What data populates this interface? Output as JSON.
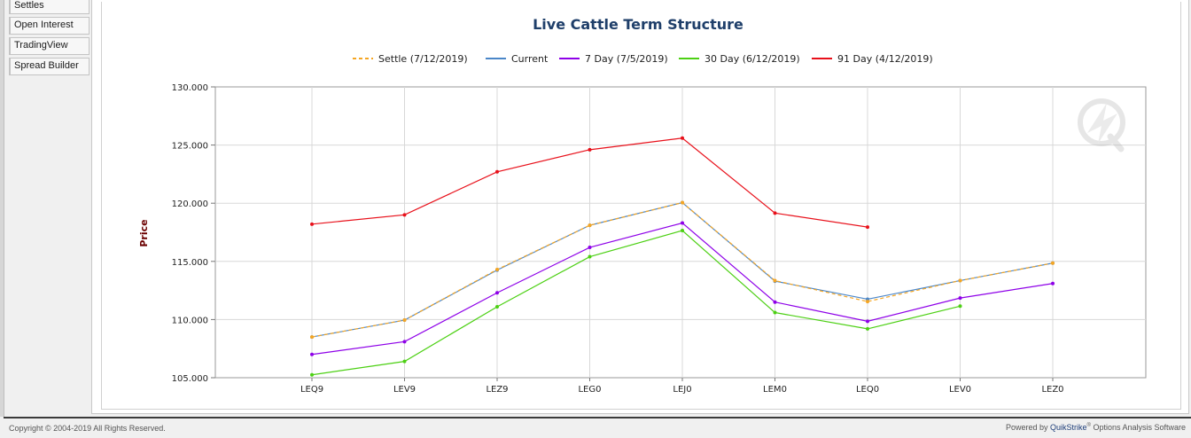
{
  "sidebar": {
    "items": [
      {
        "label": "Settles"
      },
      {
        "label": "Open Interest"
      },
      {
        "label": "TradingView"
      },
      {
        "label": "Spread Builder"
      }
    ]
  },
  "footer": {
    "copyright": "Copyright © 2004-2019 All Rights Reserved.",
    "powered_by": "Powered by",
    "brand": "QuikStrike",
    "brand_mark": "®",
    "product": "Options Analysis Software"
  },
  "colors": {
    "settle": "#f5a623",
    "current": "#4a86c8",
    "day7": "#8e00e8",
    "day30": "#4cd013",
    "day91": "#e8101a",
    "title": "#1f3f6a",
    "ylabel": "#6b0000"
  },
  "chart_data": {
    "type": "line",
    "title": "Live Cattle Term Structure",
    "xlabel": "",
    "ylabel": "Price",
    "categories": [
      "LEQ9",
      "LEV9",
      "LEZ9",
      "LEG0",
      "LEJ0",
      "LEM0",
      "LEQ0",
      "LEV0",
      "LEZ0"
    ],
    "ylim": [
      105,
      130
    ],
    "yticks": [
      "105.000",
      "110.000",
      "115.000",
      "120.000",
      "125.000",
      "130.000"
    ],
    "grid": true,
    "legend_position": "top",
    "series": [
      {
        "name": "Settle (7/12/2019)",
        "style": "dashed",
        "values": [
          108.5,
          109.95,
          114.3,
          118.1,
          120.05,
          113.35,
          111.55,
          113.35,
          114.85
        ]
      },
      {
        "name": "Current",
        "style": "solid",
        "values": [
          108.5,
          109.95,
          114.25,
          118.1,
          120.05,
          113.3,
          111.75,
          113.35,
          114.85
        ]
      },
      {
        "name": "7 Day (7/5/2019)",
        "style": "solid",
        "values": [
          107.0,
          108.1,
          112.3,
          116.2,
          118.3,
          111.5,
          109.85,
          111.85,
          113.1
        ]
      },
      {
        "name": "30 Day (6/12/2019)",
        "style": "solid",
        "values": [
          105.25,
          106.4,
          111.1,
          115.4,
          117.65,
          110.6,
          109.2,
          111.15,
          null
        ]
      },
      {
        "name": "91 Day (4/12/2019)",
        "style": "solid",
        "values": [
          118.2,
          119.0,
          122.7,
          124.6,
          125.6,
          119.15,
          117.95,
          null,
          null
        ]
      }
    ]
  }
}
